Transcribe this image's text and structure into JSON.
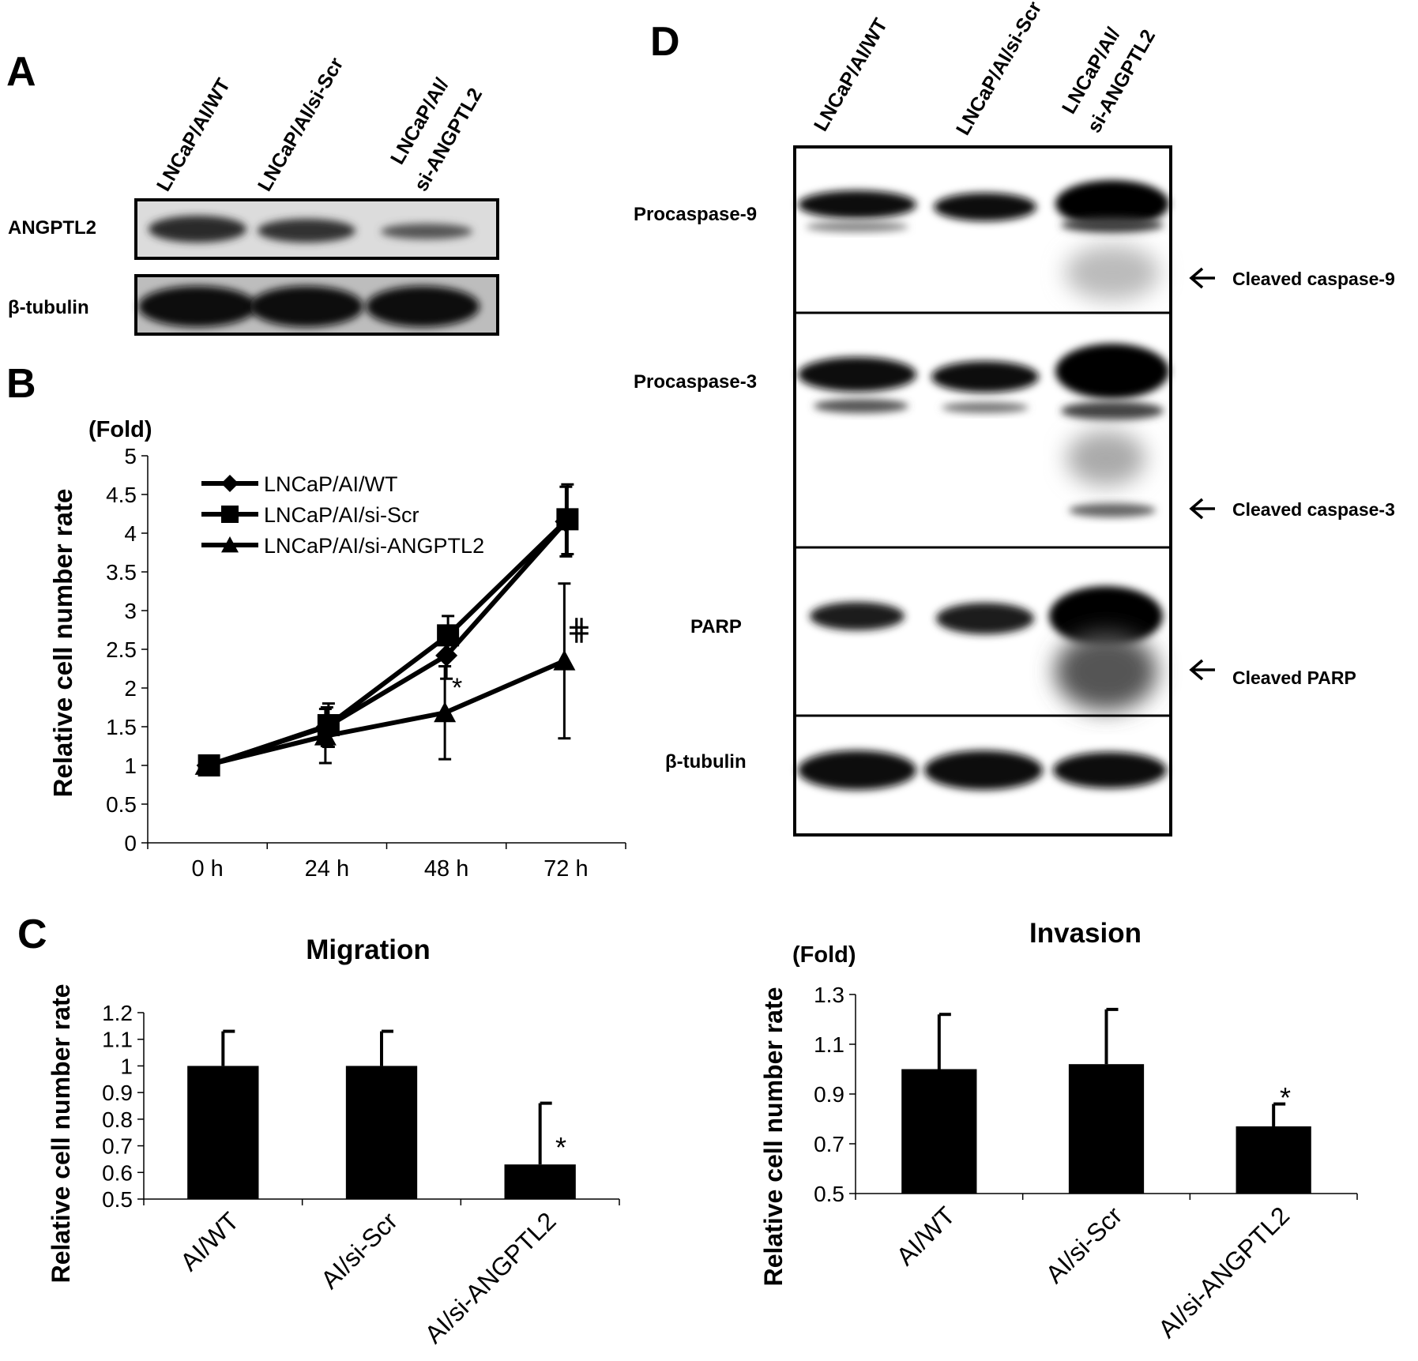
{
  "panels": {
    "a": {
      "letter": "A",
      "lanes": [
        "LNCaP/AI/WT",
        "LNCaP/AI/si-Scr",
        "LNCaP/AI/",
        "si-ANGPTL2"
      ],
      "rows": [
        "ANGPTL2",
        "β-tubulin"
      ]
    },
    "b": {
      "letter": "B"
    },
    "c": {
      "letter": "C"
    },
    "d": {
      "letter": "D",
      "lanes": [
        "LNCaP/AI/WT",
        "LNCaP/AI/si-Scr",
        "LNCaP/AI/",
        "si-ANGPTL2"
      ],
      "rows": [
        "Procaspase-9",
        "Procaspase-3",
        "PARP",
        "β-tubulin"
      ],
      "arrows": [
        "Cleaved caspase-9",
        "Cleaved caspase-3",
        "Cleaved PARP"
      ]
    }
  },
  "chart_data": [
    {
      "type": "line",
      "panel": "B",
      "unit": "(Fold)",
      "ylabel": "Relative cell number rate",
      "xlabel": "",
      "categories": [
        "0 h",
        "24 h",
        "48 h",
        "72 h"
      ],
      "ylim": [
        0,
        5
      ],
      "yticks": [
        "0",
        "0.5",
        "1",
        "1.5",
        "2",
        "2.5",
        "3",
        "3.5",
        "4",
        "4.5",
        "5"
      ],
      "legend_position": "top-left",
      "series": [
        {
          "name": "LNCaP/AI/WT",
          "marker": "diamond",
          "values": [
            1,
            1.5,
            2.42,
            4.15
          ],
          "errors": [
            0.05,
            0.25,
            0.3,
            0.45
          ]
        },
        {
          "name": "LNCaP/AI/si-Scr",
          "marker": "square",
          "values": [
            1,
            1.52,
            2.68,
            4.18
          ],
          "errors": [
            0.05,
            0.28,
            0.25,
            0.45
          ]
        },
        {
          "name": "LNCaP/AI/si-ANGPTL2",
          "marker": "triangle",
          "values": [
            1,
            1.38,
            1.68,
            2.35
          ],
          "errors": [
            0.05,
            0.35,
            0.6,
            1.0
          ]
        }
      ],
      "annotations": [
        "*",
        "⋕"
      ]
    },
    {
      "type": "bar",
      "panel": "C",
      "title": "Migration",
      "ylabel": "Relative cell number rate",
      "xlabel": "",
      "categories": [
        "AI/WT",
        "AI/si-Scr",
        "AI/si-ANGPTL2"
      ],
      "values": [
        1.0,
        1.0,
        0.63
      ],
      "errors": [
        0.13,
        0.13,
        0.23
      ],
      "ylim": [
        0.5,
        1.2
      ],
      "yticks": [
        "0.5",
        "0.6",
        "0.7",
        "0.8",
        "0.9",
        "1",
        "1.1",
        "1.2"
      ],
      "annotations": [
        "*"
      ]
    },
    {
      "type": "bar",
      "panel": "C",
      "title": "Invasion",
      "unit": "(Fold)",
      "ylabel": "Relative cell number rate",
      "xlabel": "",
      "categories": [
        "AI/WT",
        "AI/si-Scr",
        "AI/si-ANGPTL2"
      ],
      "values": [
        1.0,
        1.02,
        0.77
      ],
      "errors": [
        0.22,
        0.22,
        0.09
      ],
      "ylim": [
        0.5,
        1.3
      ],
      "yticks": [
        "0.5",
        "0.7",
        "0.9",
        "1.1",
        "1.3"
      ],
      "annotations": [
        "*"
      ]
    }
  ]
}
